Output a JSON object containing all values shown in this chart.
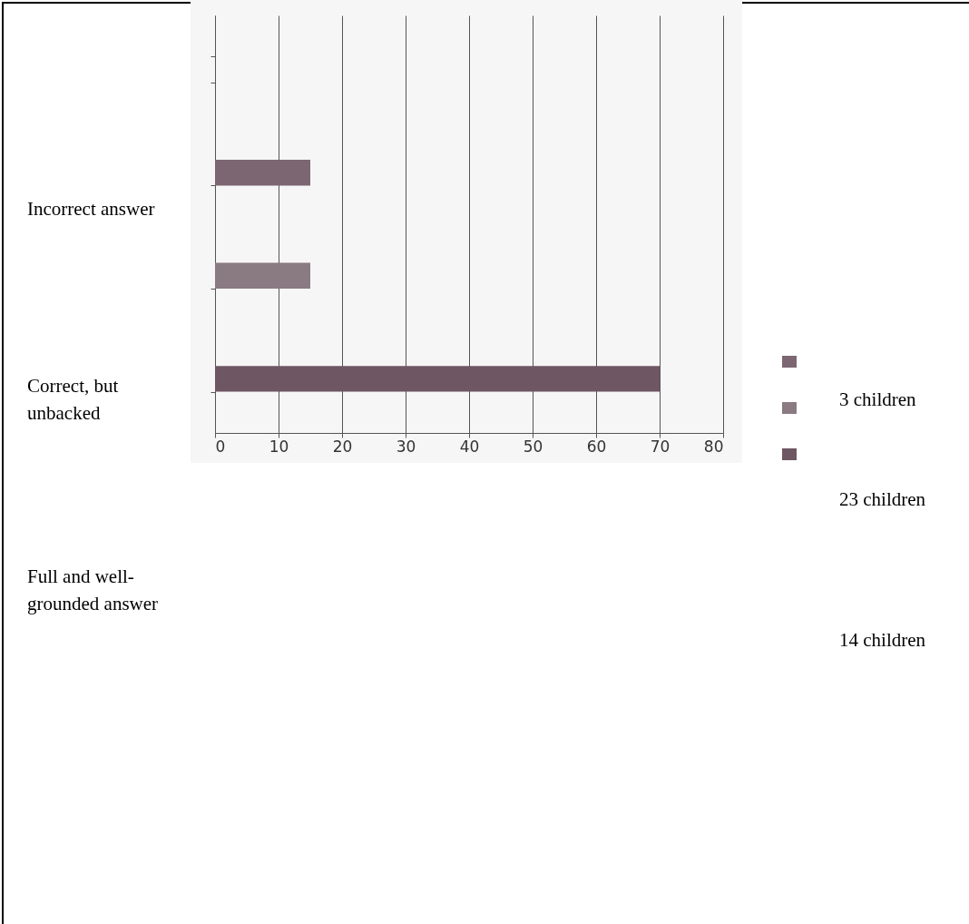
{
  "chart_data": {
    "type": "bar",
    "orientation": "horizontal",
    "categories": [
      null,
      null,
      null,
      null
    ],
    "values": [
      null,
      15,
      15,
      70
    ],
    "colors": [
      "#7b6672",
      "#7b6672",
      "#8a7a82",
      "#6e5663"
    ],
    "xlim": [
      0,
      80
    ],
    "xticks": [
      0,
      10,
      20,
      30,
      40,
      50,
      60,
      70,
      80
    ],
    "grid": "x",
    "annotations": [
      "Incorrect answer",
      "Correct, but unbacked",
      "Full and well-grounded answer",
      "3 children",
      "23 children",
      "14 children"
    ]
  }
}
